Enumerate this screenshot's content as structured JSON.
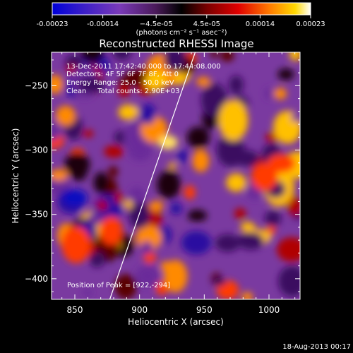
{
  "chart_data": {
    "type": "heatmap",
    "title": "Reconstructed RHESSI Image",
    "xlabel": "Heliocentric X (arcsec)",
    "ylabel": "Heliocentric Y (arcsec)",
    "xlim": [
      832,
      1024
    ],
    "ylim": [
      -416,
      -224
    ],
    "x_ticks": [
      850,
      900,
      950,
      1000
    ],
    "y_ticks": [
      -250,
      -300,
      -350,
      -400
    ],
    "colorbar": {
      "colormap": "rainbow-then-hot",
      "range": [
        -0.00023,
        0.00023
      ],
      "tick_values": [
        -0.00023,
        -0.00014,
        -4.5e-05,
        4.5e-05,
        0.00014,
        0.00023
      ],
      "tick_labels": [
        "-0.00023",
        "-0.00014",
        "−4.5e-05",
        "4.5e-05",
        "0.00014",
        "0.00023"
      ],
      "units_label": "(photons cm⁻² s⁻¹ asec⁻²)"
    },
    "info_lines": [
      "13-Dec-2011 17:42:40.000 to 17:44:08.000",
      "Detectors: 4F 5F 6F 7F 8F, Att 0",
      "Energy Range: 25.0 - 50.0 keV",
      "Clean     Total counts: 2.90E+03"
    ],
    "peak_label": "Position of Peak = [922,-294]",
    "peak_position": [
      922,
      -294
    ],
    "limb_line": [
      [
        877,
        -416
      ],
      [
        943,
        -224
      ]
    ],
    "footer_date": "18-Aug-2013 00:17"
  }
}
